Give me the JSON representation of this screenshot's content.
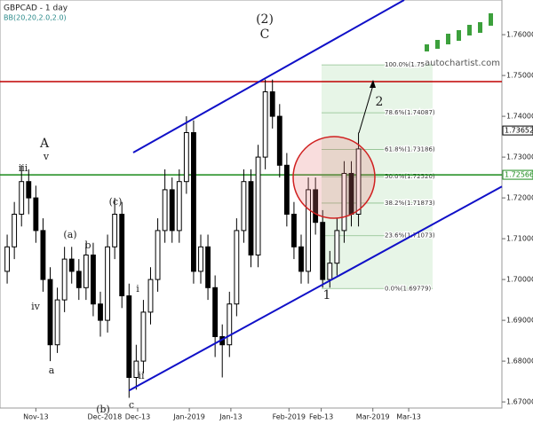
{
  "chart_data": {
    "type": "candlestick",
    "title": "GBPCAD - 1 day",
    "subtitle": "BB(20,20,2.0,2.0)",
    "brand": "autochartist.com",
    "xlim": [
      -1,
      69
    ],
    "ylim": [
      1.6685,
      1.7685
    ],
    "yticks": [
      {
        "value": 1.67,
        "label": "1.67000"
      },
      {
        "value": 1.68,
        "label": "1.68000"
      },
      {
        "value": 1.69,
        "label": "1.69000"
      },
      {
        "value": 1.7,
        "label": "1.70000"
      },
      {
        "value": 1.71,
        "label": "1.71000"
      },
      {
        "value": 1.72,
        "label": "1.72000"
      },
      {
        "value": 1.73,
        "label": "1.73000"
      },
      {
        "value": 1.74,
        "label": "1.74000"
      },
      {
        "value": 1.75,
        "label": "1.75000"
      },
      {
        "value": 1.76,
        "label": "1.76000"
      }
    ],
    "xticks": [
      {
        "value": 4,
        "label": "Nov-13"
      },
      {
        "value": 13.6,
        "label": "Dec-2018"
      },
      {
        "value": 18.2,
        "label": "Dec-13"
      },
      {
        "value": 25.4,
        "label": "Jan-2019"
      },
      {
        "value": 31.2,
        "label": "Jan-13"
      },
      {
        "value": 39.3,
        "label": "Feb-2019"
      },
      {
        "value": 43.8,
        "label": "Feb-13"
      },
      {
        "value": 51,
        "label": "Mar-2019"
      },
      {
        "value": 56,
        "label": "Mar-13"
      }
    ],
    "x": [
      0,
      1,
      2,
      3,
      4,
      5,
      6,
      7,
      8,
      9,
      10,
      11,
      12,
      13,
      14,
      15,
      16,
      17,
      18,
      19,
      20,
      21,
      22,
      23,
      24,
      25,
      26,
      27,
      28,
      29,
      30,
      31,
      32,
      33,
      34,
      35,
      36,
      37,
      38,
      39,
      40,
      41,
      42,
      43,
      44,
      45,
      46,
      47,
      48,
      49
    ],
    "open": [
      1.702,
      1.708,
      1.716,
      1.724,
      1.72,
      1.712,
      1.7,
      1.684,
      1.695,
      1.705,
      1.702,
      1.698,
      1.706,
      1.694,
      1.69,
      1.708,
      1.716,
      1.696,
      1.676,
      1.68,
      1.692,
      1.7,
      1.712,
      1.722,
      1.712,
      1.724,
      1.736,
      1.702,
      1.708,
      1.698,
      1.686,
      1.684,
      1.694,
      1.712,
      1.724,
      1.706,
      1.73,
      1.746,
      1.74,
      1.728,
      1.716,
      1.708,
      1.702,
      1.722,
      1.714,
      1.7,
      1.704,
      1.712,
      1.726,
      1.716
    ],
    "high": [
      1.711,
      1.719,
      1.728,
      1.727,
      1.723,
      1.715,
      1.703,
      1.698,
      1.708,
      1.708,
      1.705,
      1.709,
      1.709,
      1.697,
      1.711,
      1.72,
      1.719,
      1.699,
      1.684,
      1.695,
      1.703,
      1.715,
      1.727,
      1.725,
      1.727,
      1.74,
      1.739,
      1.711,
      1.711,
      1.701,
      1.689,
      1.697,
      1.715,
      1.727,
      1.727,
      1.733,
      1.749,
      1.749,
      1.743,
      1.731,
      1.719,
      1.711,
      1.725,
      1.725,
      1.717,
      1.707,
      1.715,
      1.729,
      1.729,
      1.736
    ],
    "low": [
      1.699,
      1.705,
      1.713,
      1.716,
      1.709,
      1.697,
      1.68,
      1.682,
      1.692,
      1.699,
      1.695,
      1.695,
      1.691,
      1.686,
      1.687,
      1.705,
      1.693,
      1.671,
      1.673,
      1.677,
      1.689,
      1.697,
      1.709,
      1.709,
      1.709,
      1.721,
      1.699,
      1.699,
      1.695,
      1.681,
      1.676,
      1.681,
      1.691,
      1.709,
      1.703,
      1.703,
      1.727,
      1.737,
      1.725,
      1.713,
      1.705,
      1.699,
      1.699,
      1.711,
      1.698,
      1.698,
      1.701,
      1.709,
      1.713,
      1.713
    ],
    "close": [
      1.708,
      1.716,
      1.724,
      1.72,
      1.712,
      1.7,
      1.684,
      1.695,
      1.705,
      1.702,
      1.698,
      1.706,
      1.694,
      1.69,
      1.708,
      1.716,
      1.696,
      1.676,
      1.68,
      1.692,
      1.7,
      1.712,
      1.722,
      1.712,
      1.724,
      1.736,
      1.702,
      1.708,
      1.698,
      1.686,
      1.684,
      1.694,
      1.712,
      1.724,
      1.706,
      1.73,
      1.746,
      1.74,
      1.728,
      1.716,
      1.708,
      1.702,
      1.722,
      1.714,
      1.7,
      1.704,
      1.712,
      1.726,
      1.716,
      1.732
    ],
    "up_color": "#ffffff",
    "down_color": "#000000",
    "levels": [
      {
        "value": 1.7485,
        "color": "#c00000"
      },
      {
        "value": 1.72566,
        "color": "#1a8a1a"
      }
    ],
    "price_tags": [
      {
        "value": 1.73652,
        "color": "#000000"
      },
      {
        "value": 1.72566,
        "color": "#1a8a1a"
      }
    ],
    "trendlines": [
      {
        "color": "#1010c8",
        "points": [
          [
            17.58,
            1.7311
          ],
          [
            55.37,
            1.7685
          ]
        ]
      },
      {
        "color": "#1010c8",
        "points": [
          [
            17.0,
            1.6728
          ],
          [
            69,
            1.7228
          ]
        ]
      }
    ],
    "fib_levels": [
      {
        "value": 1.7526,
        "label": "100.0%(1.75"
      },
      {
        "value": 1.74087,
        "label": "78.6%(1.74087)"
      },
      {
        "value": 1.73186,
        "label": "61.8%(1.73186)"
      },
      {
        "value": 1.7252,
        "label": "50.0%(1.72520)"
      },
      {
        "value": 1.71873,
        "label": "38.2%(1.71873)"
      },
      {
        "value": 1.71073,
        "label": "23.6%(1.71073)"
      },
      {
        "value": 1.69779,
        "label": "0.0%(1.69779)"
      }
    ],
    "wave_labels": [
      "A",
      "v",
      "iii",
      "iv",
      "a",
      "(a)",
      "b",
      "(b)",
      "c",
      "(c)",
      "i",
      "ii",
      "(2)",
      "C",
      "1",
      "2"
    ]
  }
}
